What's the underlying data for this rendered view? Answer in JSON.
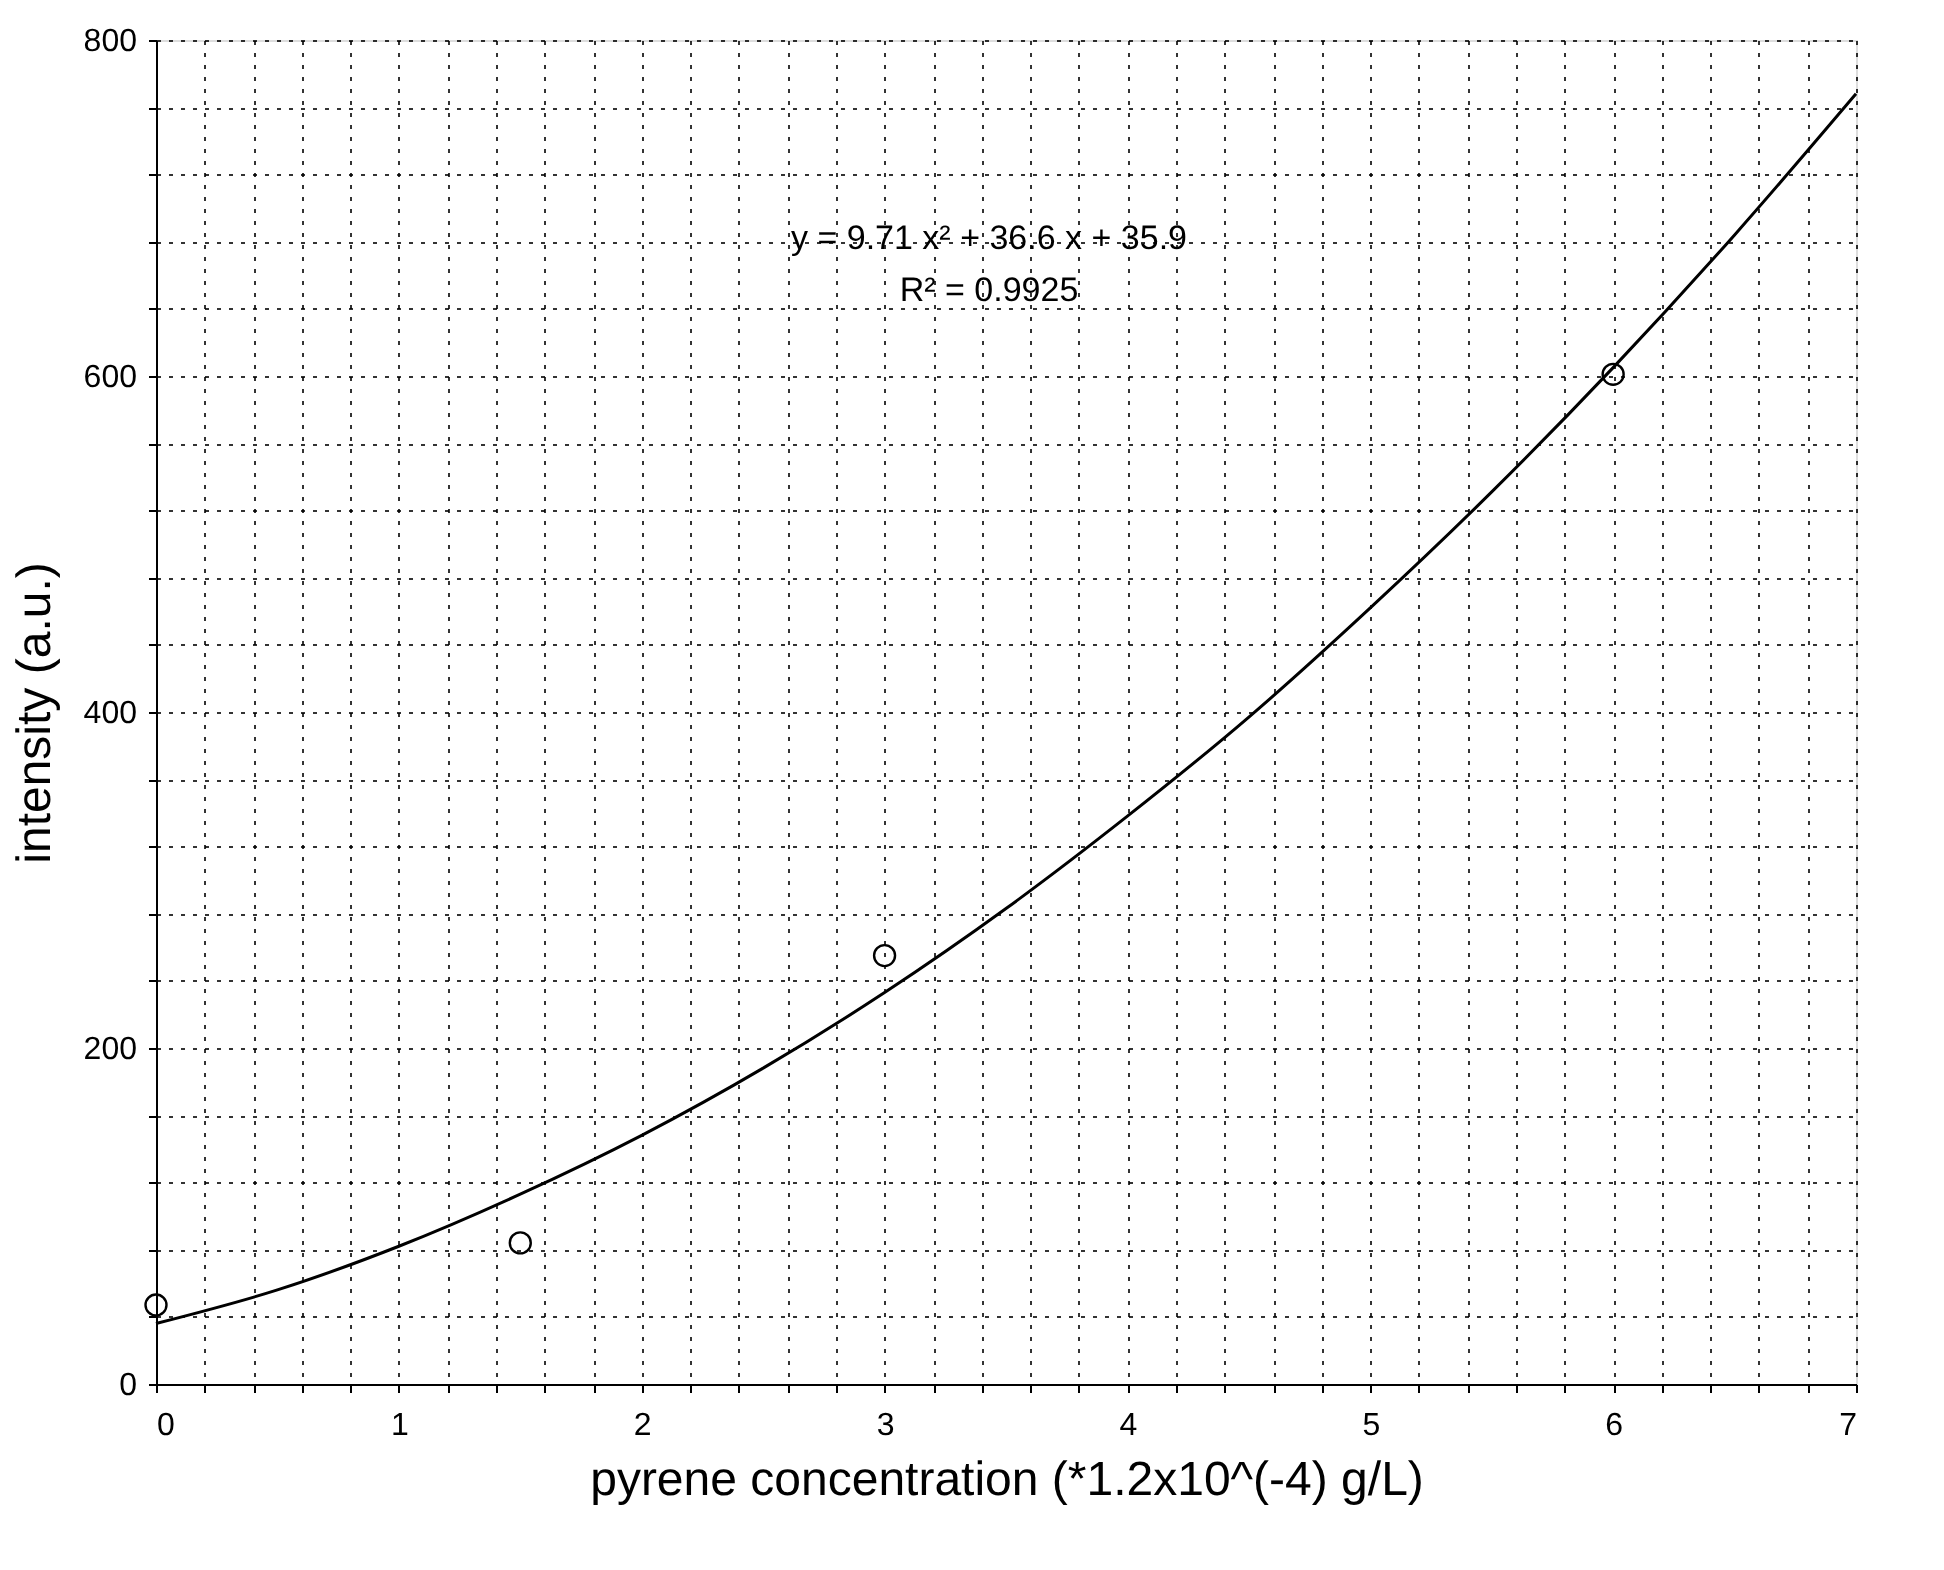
{
  "chart_data": {
    "type": "scatter",
    "xlabel": "pyrene concentration (*1.2x10^(-4) g/L)",
    "ylabel": "intensity (a.u.)",
    "annotations": [
      "y = 9.71 x² + 36.6 x + 35.9",
      "R² = 0.9925"
    ],
    "series": [
      {
        "marker": "circle",
        "color": "#000000",
        "x": [
          0,
          1.5,
          3,
          6
        ],
        "values": [
          47,
          84,
          255,
          601
        ]
      },
      {
        "type": "line",
        "marker": "none",
        "line_style": "solid",
        "color": "#000000",
        "x": [
          0,
          0.5,
          1,
          1.5,
          2,
          2.5,
          3,
          3.5,
          4,
          4.5,
          5,
          5.5,
          6,
          6.5,
          7
        ],
        "values": [
          36,
          56,
          82,
          113,
          148,
          188,
          233,
          283,
          338,
          397,
          462,
          531,
          605,
          684,
          768
        ]
      }
    ],
    "xlim": [
      0,
      7
    ],
    "ylim": [
      0,
      800
    ],
    "xticks": [
      0,
      {
        "value": 0.2,
        "label": null
      },
      {
        "value": 0.4,
        "label": null
      },
      {
        "value": 0.6,
        "label": null
      },
      {
        "value": 0.8,
        "label": null
      },
      1,
      {
        "value": 1.2,
        "label": null
      },
      {
        "value": 1.4,
        "label": null
      },
      {
        "value": 1.6,
        "label": null
      },
      {
        "value": 1.8,
        "label": null
      },
      2,
      {
        "value": 2.2,
        "label": null
      },
      {
        "value": 2.4,
        "label": null
      },
      {
        "value": 2.6,
        "label": null
      },
      {
        "value": 2.8,
        "label": null
      },
      3,
      {
        "value": 3.2,
        "label": null
      },
      {
        "value": 3.4,
        "label": null
      },
      {
        "value": 3.6,
        "label": null
      },
      {
        "value": 3.8,
        "label": null
      },
      4,
      {
        "value": 4.2,
        "label": null
      },
      {
        "value": 4.4,
        "label": null
      },
      {
        "value": 4.6,
        "label": null
      },
      {
        "value": 4.8,
        "label": null
      },
      5,
      {
        "value": 5.2,
        "label": null
      },
      {
        "value": 5.4,
        "label": null
      },
      {
        "value": 5.6,
        "label": null
      },
      {
        "value": 5.8,
        "label": null
      },
      6,
      {
        "value": 6.2,
        "label": null
      },
      {
        "value": 6.4,
        "label": null
      },
      {
        "value": 6.6,
        "label": null
      },
      {
        "value": 6.8,
        "label": null
      },
      7
    ],
    "yticks": [
      0,
      {
        "value": 40,
        "label": null
      },
      {
        "value": 80,
        "label": null
      },
      {
        "value": 120,
        "label": null
      },
      {
        "value": 160,
        "label": null
      },
      200,
      {
        "value": 240,
        "label": null
      },
      {
        "value": 280,
        "label": null
      },
      {
        "value": 320,
        "label": null
      },
      {
        "value": 360,
        "label": null
      },
      400,
      {
        "value": 440,
        "label": null
      },
      {
        "value": 480,
        "label": null
      },
      {
        "value": 520,
        "label": null
      },
      {
        "value": 560,
        "label": null
      },
      600,
      {
        "value": 640,
        "label": null
      },
      {
        "value": 680,
        "label": null
      },
      {
        "value": 720,
        "label": null
      },
      {
        "value": 760,
        "label": null
      },
      800
    ],
    "grid": true
  }
}
